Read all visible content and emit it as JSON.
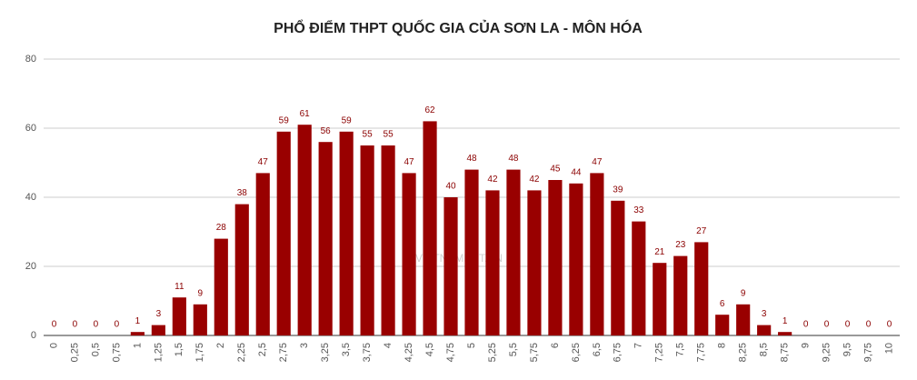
{
  "chart_data": {
    "type": "bar",
    "title": "PHỔ ĐIỂM THPT QUỐC GIA CỦA  SƠN LA - MÔN HÓA",
    "watermark": "VIETNAMNET.VN",
    "categories": [
      "0",
      "0,25",
      "0,5",
      "0,75",
      "1",
      "1,25",
      "1,5",
      "1,75",
      "2",
      "2,25",
      "2,5",
      "2,75",
      "3",
      "3,25",
      "3,5",
      "3,75",
      "4",
      "4,25",
      "4,5",
      "4,75",
      "5",
      "5,25",
      "5,5",
      "5,75",
      "6",
      "6,25",
      "6,5",
      "6,75",
      "7",
      "7,25",
      "7,5",
      "7,75",
      "8",
      "8,25",
      "8,5",
      "8,75",
      "9",
      "9,25",
      "9,5",
      "9,75",
      "10"
    ],
    "values": [
      0,
      0,
      0,
      0,
      1,
      3,
      11,
      9,
      28,
      38,
      47,
      59,
      61,
      56,
      59,
      55,
      55,
      47,
      62,
      40,
      48,
      42,
      48,
      42,
      45,
      44,
      47,
      39,
      33,
      21,
      23,
      27,
      6,
      9,
      3,
      1,
      0,
      0,
      0,
      0,
      0
    ],
    "color": "#990000",
    "ylim": [
      0,
      80
    ],
    "yticks": [
      0,
      20,
      40,
      60,
      80
    ],
    "grid": true
  }
}
